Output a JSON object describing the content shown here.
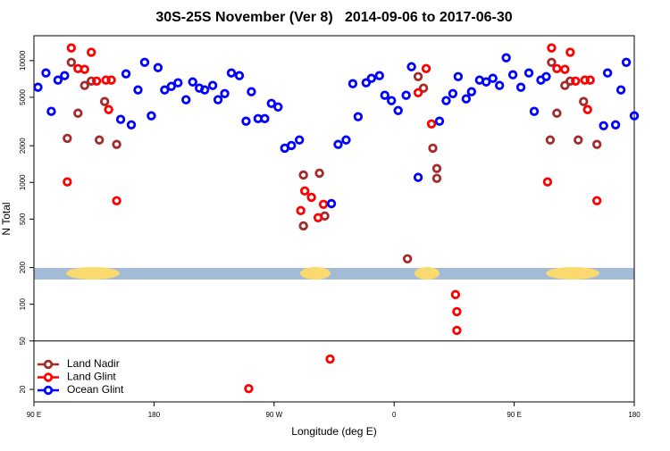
{
  "chart_data": {
    "type": "scatter",
    "title": "30S-25S November (Ver 8)   2014-09-06 to 2017-06-30",
    "x_label": "Longitude (deg E)",
    "y_label": "N Total",
    "log_y": true,
    "legend": "lower left",
    "xlim": [
      90,
      540
    ],
    "ylim": [
      15.8,
      16000
    ],
    "xticks": [
      {
        "value": 90,
        "label": "90 E"
      },
      180,
      {
        "value": 270,
        "label": "90 W"
      },
      {
        "value": 360,
        "label": "0"
      },
      {
        "value": 450,
        "label": "90 E"
      },
      {
        "value": 540,
        "label": "180"
      }
    ],
    "yticks": [
      20,
      50,
      100,
      200,
      500,
      1000,
      2000,
      5000,
      10000
    ],
    "series": [
      {
        "name": "Land Nadir",
        "color": "#a52a2a",
        "x": [
          115,
          118,
          123,
          128,
          133,
          139,
          143,
          152,
          292,
          292,
          304,
          308,
          370,
          378,
          382,
          389,
          392,
          392,
          477,
          478,
          482,
          488,
          492,
          498,
          502,
          512
        ],
        "values": [
          2300,
          9680,
          3700,
          6250,
          6790,
          2230,
          4610,
          2050,
          440,
          1150,
          1190,
          530,
          236,
          7390,
          5940,
          1910,
          1080,
          1300,
          2230,
          9680,
          3700,
          6250,
          6790,
          2230,
          4610,
          2050
        ]
      },
      {
        "name": "Land Glint",
        "color": "#ff0000",
        "x": [
          115,
          118,
          123,
          128,
          133,
          137,
          144,
          148,
          146,
          152,
          251,
          290,
          293,
          298,
          303,
          307,
          312,
          378,
          384,
          388,
          406,
          407,
          407,
          475,
          478,
          482,
          488,
          492,
          496,
          503,
          507,
          505,
          512
        ],
        "values": [
          1010,
          12700,
          8600,
          8470,
          11700,
          6790,
          6920,
          6920,
          3960,
          707,
          20.3,
          587,
          851,
          755,
          513,
          661,
          35.5,
          5450,
          8600,
          3020,
          120,
          86.9,
          61,
          1010,
          12700,
          8600,
          8470,
          11700,
          6790,
          6920,
          6920,
          3960,
          707
        ]
      },
      {
        "name": "Ocean Glint",
        "color": "#0000ff",
        "x": [
          93,
          99,
          103,
          108,
          113,
          155,
          159,
          163,
          168,
          173,
          178,
          183,
          188,
          193,
          198,
          204,
          209,
          214,
          218,
          224,
          228,
          233,
          238,
          244,
          249,
          253,
          258,
          263,
          268,
          273,
          278,
          283,
          289,
          313,
          318,
          324,
          329,
          333,
          339,
          343,
          349,
          353,
          358,
          363,
          369,
          373,
          378,
          394,
          399,
          404,
          408,
          414,
          418,
          424,
          429,
          434,
          439,
          444,
          449,
          455,
          461,
          465,
          470,
          474,
          517,
          520,
          526,
          530,
          534,
          540
        ],
        "values": [
          6040,
          7910,
          3830,
          6920,
          7520,
          3290,
          7780,
          2970,
          5740,
          9680,
          3520,
          8750,
          5740,
          6140,
          6570,
          4770,
          6680,
          5940,
          5740,
          6250,
          4770,
          5360,
          7910,
          7520,
          3180,
          5550,
          3340,
          3340,
          4450,
          4160,
          1910,
          2010,
          2230,
          670,
          2050,
          2230,
          6460,
          3460,
          6570,
          7150,
          7520,
          5190,
          4690,
          3890,
          5190,
          8900,
          1100,
          3180,
          4690,
          5360,
          7390,
          4850,
          5550,
          6920,
          6680,
          7150,
          6250,
          10540,
          7650,
          6040,
          7910,
          3830,
          6920,
          7390,
          2920,
          7910,
          2970,
          5740,
          9680,
          3520
        ]
      }
    ]
  }
}
